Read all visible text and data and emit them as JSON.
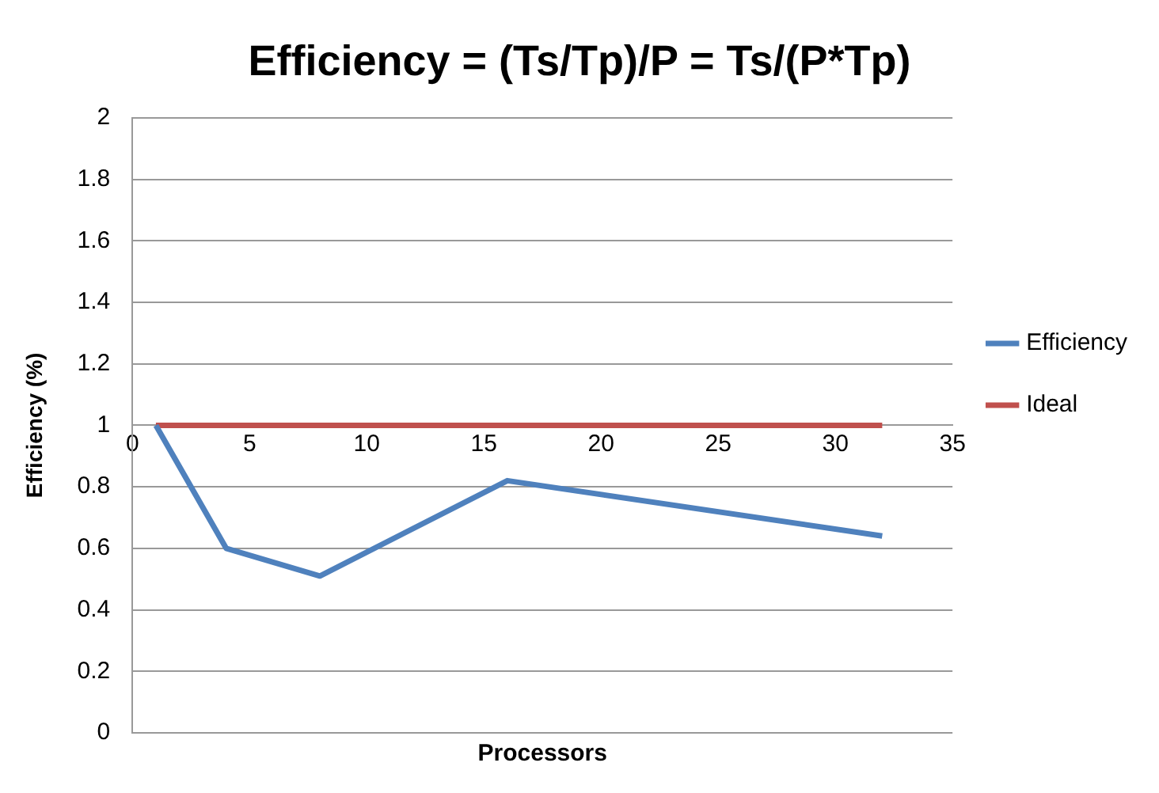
{
  "chart_data": {
    "type": "line",
    "title": "Efficiency = (Ts/Tp)/P = Ts/(P*Tp)",
    "xlabel": "Processors",
    "ylabel": "Efficiency (%)",
    "x": [
      1,
      4,
      8,
      16,
      32
    ],
    "series": [
      {
        "name": "Efficiency",
        "color": "#4f81bd",
        "values": [
          1,
          0.6,
          0.51,
          0.82,
          0.64
        ]
      },
      {
        "name": "Ideal",
        "color": "#c0504d",
        "values": [
          1,
          1,
          1,
          1,
          1
        ]
      }
    ],
    "xlim": [
      0,
      35
    ],
    "xticks": [
      0,
      5,
      10,
      15,
      20,
      25,
      30,
      35
    ],
    "ylim": [
      0,
      2
    ],
    "yticks": [
      0,
      0.2,
      0.4,
      0.6,
      0.8,
      1,
      1.2,
      1.4,
      1.6,
      1.8,
      2
    ],
    "grid": "y",
    "legend": "right",
    "marker": "none",
    "line_style": "solid"
  }
}
